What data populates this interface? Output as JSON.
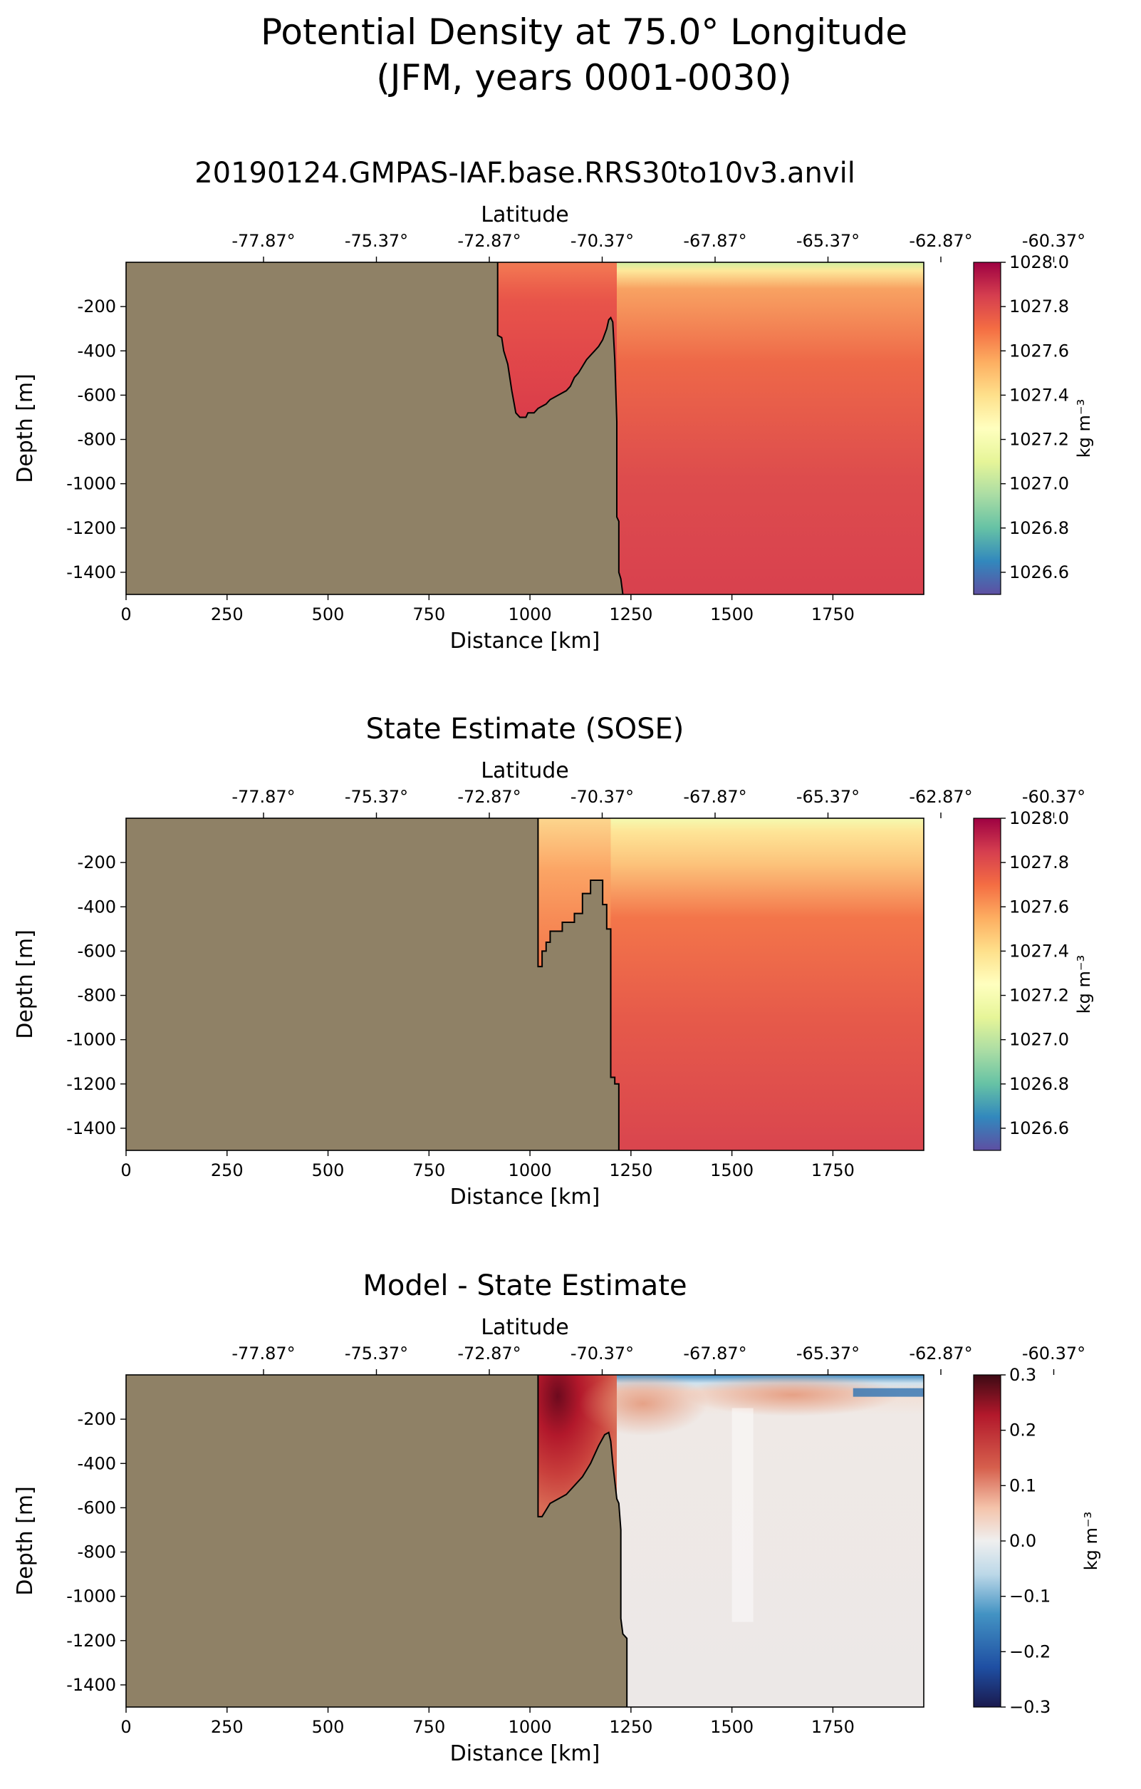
{
  "figure": {
    "title_line1": "Potential Density at 75.0° Longitude",
    "title_line2": "(JFM, years 0001-0030)"
  },
  "colors": {
    "land": "#8f8166",
    "outline": "#000000"
  },
  "chart_data": [
    {
      "type": "heatmap",
      "title": "20190124.GMPAS-IAF.base.RRS30to10v3.anvil",
      "xlabel": "Distance [km]",
      "ylabel": "Depth [m]",
      "top_xlabel": "Latitude",
      "xlim": [
        0,
        1975
      ],
      "ylim": [
        -1500,
        0
      ],
      "xticks": [
        0,
        250,
        500,
        750,
        1000,
        1250,
        1500,
        1750
      ],
      "yticks": [
        -200,
        -400,
        -600,
        -800,
        -1000,
        -1200,
        -1400
      ],
      "top_ticks": [
        "-77.87°",
        "-75.37°",
        "-72.87°",
        "-70.37°",
        "-67.87°",
        "-65.37°",
        "-62.87°",
        "-60.37°"
      ],
      "colormap": "Spectral_r",
      "colorbar": {
        "label": "kg m⁻³",
        "min": 1026.5,
        "max": 1028.0,
        "ticks": [
          "1026.6",
          "1026.8",
          "1027.0",
          "1027.2",
          "1027.4",
          "1027.6",
          "1027.8",
          "1028.0"
        ]
      },
      "field_estimate": {
        "surface": 1027.1,
        "shallow_layer": 1027.55,
        "deep": 1027.8,
        "shelf_water": 1027.9
      },
      "topography": [
        [
          920,
          0
        ],
        [
          920,
          -330
        ],
        [
          930,
          -340
        ],
        [
          935,
          -400
        ],
        [
          945,
          -460
        ],
        [
          950,
          -520
        ],
        [
          955,
          -580
        ],
        [
          960,
          -630
        ],
        [
          965,
          -680
        ],
        [
          975,
          -700
        ],
        [
          990,
          -700
        ],
        [
          995,
          -680
        ],
        [
          1010,
          -680
        ],
        [
          1020,
          -660
        ],
        [
          1040,
          -640
        ],
        [
          1050,
          -620
        ],
        [
          1070,
          -600
        ],
        [
          1090,
          -580
        ],
        [
          1100,
          -560
        ],
        [
          1110,
          -520
        ],
        [
          1120,
          -500
        ],
        [
          1130,
          -470
        ],
        [
          1140,
          -440
        ],
        [
          1150,
          -420
        ],
        [
          1160,
          -400
        ],
        [
          1170,
          -380
        ],
        [
          1180,
          -350
        ],
        [
          1190,
          -300
        ],
        [
          1195,
          -260
        ],
        [
          1200,
          -250
        ],
        [
          1205,
          -270
        ],
        [
          1210,
          -440
        ],
        [
          1215,
          -720
        ],
        [
          1215,
          -1000
        ],
        [
          1215,
          -1150
        ],
        [
          1220,
          -1170
        ],
        [
          1220,
          -1400
        ],
        [
          1225,
          -1430
        ],
        [
          1230,
          -1500
        ]
      ]
    },
    {
      "type": "heatmap",
      "title": "State Estimate (SOSE)",
      "xlabel": "Distance [km]",
      "ylabel": "Depth [m]",
      "top_xlabel": "Latitude",
      "xlim": [
        0,
        1975
      ],
      "ylim": [
        -1500,
        0
      ],
      "xticks": [
        0,
        250,
        500,
        750,
        1000,
        1250,
        1500,
        1750
      ],
      "yticks": [
        -200,
        -400,
        -600,
        -800,
        -1000,
        -1200,
        -1400
      ],
      "top_ticks": [
        "-77.87°",
        "-75.37°",
        "-72.87°",
        "-70.37°",
        "-67.87°",
        "-65.37°",
        "-62.87°",
        "-60.37°"
      ],
      "colormap": "Spectral_r",
      "colorbar": {
        "label": "kg m⁻³",
        "min": 1026.5,
        "max": 1028.0,
        "ticks": [
          "1026.6",
          "1026.8",
          "1027.0",
          "1027.2",
          "1027.4",
          "1027.6",
          "1027.8",
          "1028.0"
        ]
      },
      "field_estimate": {
        "surface": 1027.15,
        "shallow_layer": 1027.45,
        "deep": 1027.78,
        "shelf_water": 1027.6
      },
      "topography": [
        [
          1020,
          0
        ],
        [
          1020,
          -670
        ],
        [
          1030,
          -670
        ],
        [
          1030,
          -600
        ],
        [
          1040,
          -600
        ],
        [
          1040,
          -560
        ],
        [
          1050,
          -560
        ],
        [
          1050,
          -510
        ],
        [
          1080,
          -510
        ],
        [
          1080,
          -470
        ],
        [
          1110,
          -470
        ],
        [
          1110,
          -430
        ],
        [
          1130,
          -430
        ],
        [
          1130,
          -340
        ],
        [
          1150,
          -340
        ],
        [
          1150,
          -280
        ],
        [
          1180,
          -280
        ],
        [
          1180,
          -390
        ],
        [
          1190,
          -390
        ],
        [
          1190,
          -500
        ],
        [
          1200,
          -500
        ],
        [
          1200,
          -1170
        ],
        [
          1210,
          -1170
        ],
        [
          1210,
          -1200
        ],
        [
          1220,
          -1200
        ],
        [
          1220,
          -1500
        ]
      ]
    },
    {
      "type": "heatmap",
      "title": "Model - State Estimate",
      "xlabel": "Distance [km]",
      "ylabel": "Depth [m]",
      "top_xlabel": "Latitude",
      "xlim": [
        0,
        1975
      ],
      "ylim": [
        -1500,
        0
      ],
      "xticks": [
        0,
        250,
        500,
        750,
        1000,
        1250,
        1500,
        1750
      ],
      "yticks": [
        -200,
        -400,
        -600,
        -800,
        -1000,
        -1200,
        -1400
      ],
      "top_ticks": [
        "-77.87°",
        "-75.37°",
        "-72.87°",
        "-70.37°",
        "-67.87°",
        "-65.37°",
        "-62.87°",
        "-60.37°"
      ],
      "colormap": "RdBu_r",
      "colorbar": {
        "label": "kg m⁻³",
        "min": -0.3,
        "max": 0.3,
        "ticks": [
          "−0.3",
          "−0.2",
          "−0.1",
          "0.0",
          "0.1",
          "0.2",
          "0.3"
        ]
      },
      "field_estimate": {
        "shelf_anomaly": 0.22,
        "near_surface_positive": 0.05,
        "surface_negative": -0.15,
        "deep": 0.01
      },
      "topography": [
        [
          1020,
          0
        ],
        [
          1020,
          -640
        ],
        [
          1030,
          -640
        ],
        [
          1040,
          -610
        ],
        [
          1050,
          -580
        ],
        [
          1070,
          -560
        ],
        [
          1090,
          -540
        ],
        [
          1110,
          -500
        ],
        [
          1130,
          -460
        ],
        [
          1140,
          -430
        ],
        [
          1150,
          -400
        ],
        [
          1160,
          -360
        ],
        [
          1170,
          -320
        ],
        [
          1185,
          -270
        ],
        [
          1195,
          -260
        ],
        [
          1200,
          -300
        ],
        [
          1205,
          -400
        ],
        [
          1210,
          -480
        ],
        [
          1215,
          -560
        ],
        [
          1220,
          -580
        ],
        [
          1225,
          -700
        ],
        [
          1225,
          -1100
        ],
        [
          1230,
          -1170
        ],
        [
          1240,
          -1190
        ],
        [
          1240,
          -1500
        ]
      ]
    }
  ]
}
